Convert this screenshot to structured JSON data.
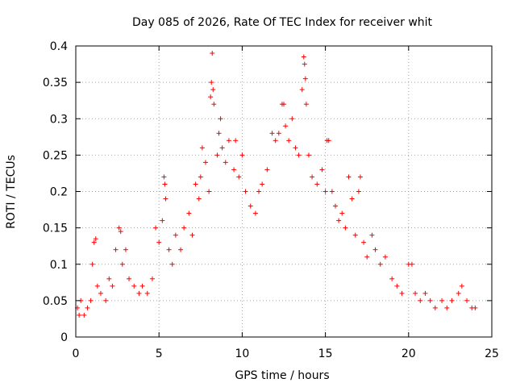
{
  "chart_data": {
    "type": "scatter",
    "title": "Day 085 of 2026, Rate Of TEC Index for receiver whit",
    "xlabel": "GPS time / hours",
    "ylabel": "ROTI / TECUs",
    "xlim": [
      0,
      25
    ],
    "ylim": [
      0,
      0.4
    ],
    "xticks": [
      0,
      5,
      10,
      15,
      20,
      25
    ],
    "yticks": [
      0,
      0.05,
      0.1,
      0.15,
      0.2,
      0.25,
      0.3,
      0.35,
      0.4
    ],
    "xtick_labels": [
      "0",
      "5",
      "10",
      "15",
      "20",
      "25"
    ],
    "ytick_labels": [
      "0",
      "0.05",
      "0.1",
      "0.15",
      "0.2",
      "0.25",
      "0.3",
      "0.35",
      "0.4"
    ],
    "grid": true,
    "marker": "plus",
    "color": "#ff0000",
    "series": [
      {
        "points": [
          [
            0.1,
            0.04
          ],
          [
            0.2,
            0.03
          ],
          [
            0.3,
            0.05
          ],
          [
            0.5,
            0.03
          ],
          [
            0.7,
            0.04
          ],
          [
            0.9,
            0.05
          ],
          [
            1.0,
            0.1
          ],
          [
            1.1,
            0.13
          ],
          [
            1.2,
            0.135
          ],
          [
            1.3,
            0.07
          ],
          [
            1.5,
            0.06
          ],
          [
            1.8,
            0.05
          ],
          [
            2.0,
            0.08
          ],
          [
            2.2,
            0.07
          ],
          [
            2.4,
            0.12
          ],
          [
            2.6,
            0.15
          ],
          [
            2.7,
            0.145
          ],
          [
            2.8,
            0.1
          ],
          [
            3.0,
            0.12
          ],
          [
            3.2,
            0.08
          ],
          [
            3.5,
            0.07
          ],
          [
            3.8,
            0.06
          ],
          [
            4.0,
            0.07
          ],
          [
            4.3,
            0.06
          ],
          [
            4.6,
            0.08
          ],
          [
            4.8,
            0.15
          ],
          [
            5.0,
            0.13
          ],
          [
            5.2,
            0.16
          ],
          [
            5.3,
            0.22
          ],
          [
            5.35,
            0.21
          ],
          [
            5.4,
            0.19
          ],
          [
            5.6,
            0.12
          ],
          [
            5.8,
            0.1
          ],
          [
            6.0,
            0.14
          ],
          [
            6.3,
            0.12
          ],
          [
            6.5,
            0.15
          ],
          [
            6.8,
            0.17
          ],
          [
            7.0,
            0.14
          ],
          [
            7.2,
            0.21
          ],
          [
            7.4,
            0.19
          ],
          [
            7.5,
            0.22
          ],
          [
            7.6,
            0.26
          ],
          [
            7.8,
            0.24
          ],
          [
            8.0,
            0.2
          ],
          [
            8.1,
            0.33
          ],
          [
            8.15,
            0.35
          ],
          [
            8.2,
            0.39
          ],
          [
            8.25,
            0.34
          ],
          [
            8.3,
            0.32
          ],
          [
            8.5,
            0.25
          ],
          [
            8.6,
            0.28
          ],
          [
            8.7,
            0.3
          ],
          [
            8.8,
            0.26
          ],
          [
            9.0,
            0.24
          ],
          [
            9.2,
            0.27
          ],
          [
            9.5,
            0.23
          ],
          [
            9.6,
            0.27
          ],
          [
            9.8,
            0.22
          ],
          [
            10.0,
            0.25
          ],
          [
            10.2,
            0.2
          ],
          [
            10.5,
            0.18
          ],
          [
            10.8,
            0.17
          ],
          [
            11.0,
            0.2
          ],
          [
            11.2,
            0.21
          ],
          [
            11.5,
            0.23
          ],
          [
            11.8,
            0.28
          ],
          [
            12.0,
            0.27
          ],
          [
            12.2,
            0.28
          ],
          [
            12.4,
            0.32
          ],
          [
            12.5,
            0.32
          ],
          [
            12.6,
            0.29
          ],
          [
            12.8,
            0.27
          ],
          [
            13.0,
            0.3
          ],
          [
            13.2,
            0.26
          ],
          [
            13.4,
            0.25
          ],
          [
            13.6,
            0.34
          ],
          [
            13.7,
            0.385
          ],
          [
            13.75,
            0.375
          ],
          [
            13.8,
            0.355
          ],
          [
            13.85,
            0.32
          ],
          [
            14.0,
            0.25
          ],
          [
            14.2,
            0.22
          ],
          [
            14.5,
            0.21
          ],
          [
            14.8,
            0.23
          ],
          [
            15.0,
            0.2
          ],
          [
            15.1,
            0.27
          ],
          [
            15.2,
            0.27
          ],
          [
            15.4,
            0.2
          ],
          [
            15.6,
            0.18
          ],
          [
            15.8,
            0.16
          ],
          [
            16.0,
            0.17
          ],
          [
            16.2,
            0.15
          ],
          [
            16.4,
            0.22
          ],
          [
            16.6,
            0.19
          ],
          [
            16.8,
            0.14
          ],
          [
            17.0,
            0.2
          ],
          [
            17.1,
            0.22
          ],
          [
            17.3,
            0.13
          ],
          [
            17.5,
            0.11
          ],
          [
            17.8,
            0.14
          ],
          [
            18.0,
            0.12
          ],
          [
            18.3,
            0.1
          ],
          [
            18.6,
            0.11
          ],
          [
            19.0,
            0.08
          ],
          [
            19.3,
            0.07
          ],
          [
            19.6,
            0.06
          ],
          [
            20.0,
            0.1
          ],
          [
            20.2,
            0.1
          ],
          [
            20.4,
            0.06
          ],
          [
            20.7,
            0.05
          ],
          [
            21.0,
            0.06
          ],
          [
            21.3,
            0.05
          ],
          [
            21.6,
            0.04
          ],
          [
            22.0,
            0.05
          ],
          [
            22.3,
            0.04
          ],
          [
            22.6,
            0.05
          ],
          [
            23.0,
            0.06
          ],
          [
            23.2,
            0.07
          ],
          [
            23.5,
            0.05
          ],
          [
            23.8,
            0.04
          ],
          [
            24.0,
            0.04
          ]
        ]
      }
    ]
  }
}
